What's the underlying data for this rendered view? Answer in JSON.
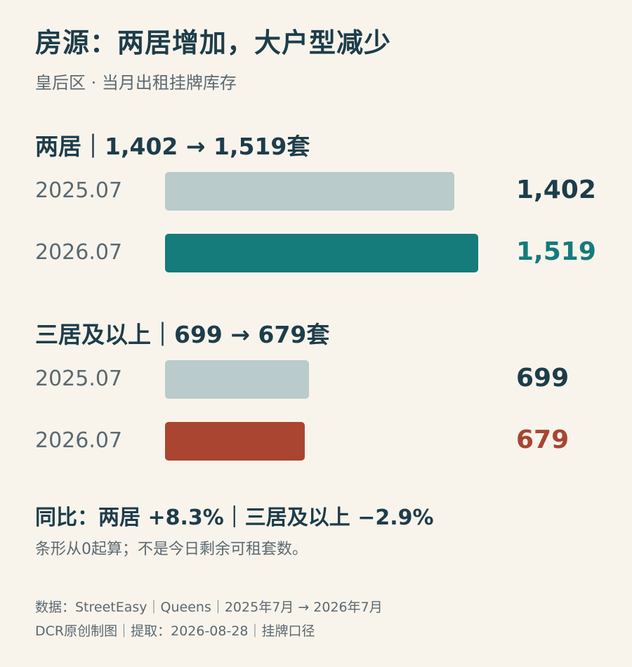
{
  "title": "房源：两居增加，大户型减少",
  "subtitle": "皇后区 · 当月出租挂牌库存",
  "colors": {
    "baseline": "#b9cbca",
    "two_bed": "#157b7b",
    "three_bed": "#a94531",
    "text": "#1d3d4a",
    "muted": "#5c6970",
    "background": "#f8f4ec"
  },
  "chart_data": {
    "type": "bar",
    "orientation": "horizontal",
    "xlim": [
      0,
      1519
    ],
    "groups": [
      {
        "title": "两居｜1,402 → 1,519套",
        "accent": "#157b7b",
        "rows": [
          {
            "period": "2025.07",
            "value": 1402,
            "label": "1,402"
          },
          {
            "period": "2026.07",
            "value": 1519,
            "label": "1,519"
          }
        ]
      },
      {
        "title": "三居及以上｜699 → 679套",
        "accent": "#a94531",
        "rows": [
          {
            "period": "2025.07",
            "value": 699,
            "label": "699"
          },
          {
            "period": "2026.07",
            "value": 679,
            "label": "679"
          }
        ]
      }
    ]
  },
  "yoy_line": "同比：两居 +8.3%｜三居及以上 −2.9%",
  "note": "条形从0起算；不是今日剩余可租套数。",
  "source_line1": "数据：StreetEasy｜Queens｜2025年7月 → 2026年7月",
  "source_line2": "DCR原创制图｜提取：2026-08-28｜挂牌口径"
}
